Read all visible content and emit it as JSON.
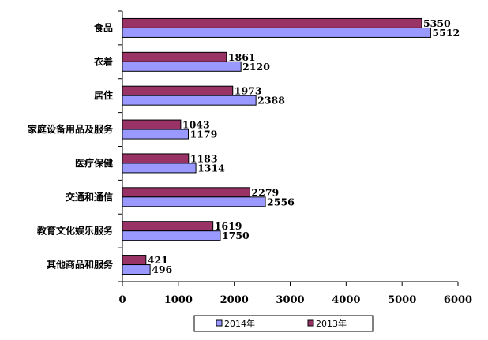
{
  "chart_data": {
    "type": "bar",
    "orientation": "horizontal",
    "categories": [
      "食品",
      "衣着",
      "居住",
      "家庭设备用品及服务",
      "医疗保健",
      "交通和通信",
      "教育文化娱乐服务",
      "其他商品和服务"
    ],
    "series": [
      {
        "name": "2013年",
        "color": "#993366",
        "values": [
          5350,
          1861,
          1973,
          1043,
          1183,
          2279,
          1619,
          421
        ]
      },
      {
        "name": "2014年",
        "color": "#9999ff",
        "values": [
          5512,
          2120,
          2388,
          1179,
          1314,
          2556,
          1750,
          496
        ]
      }
    ],
    "xlim": [
      0,
      6000
    ],
    "xticks": [
      "0",
      "1000",
      "2000",
      "3000",
      "4000",
      "5000",
      "6000"
    ],
    "legend": {
      "position": "bottom",
      "items": [
        "2014年",
        "2013年"
      ]
    },
    "grid": false
  }
}
